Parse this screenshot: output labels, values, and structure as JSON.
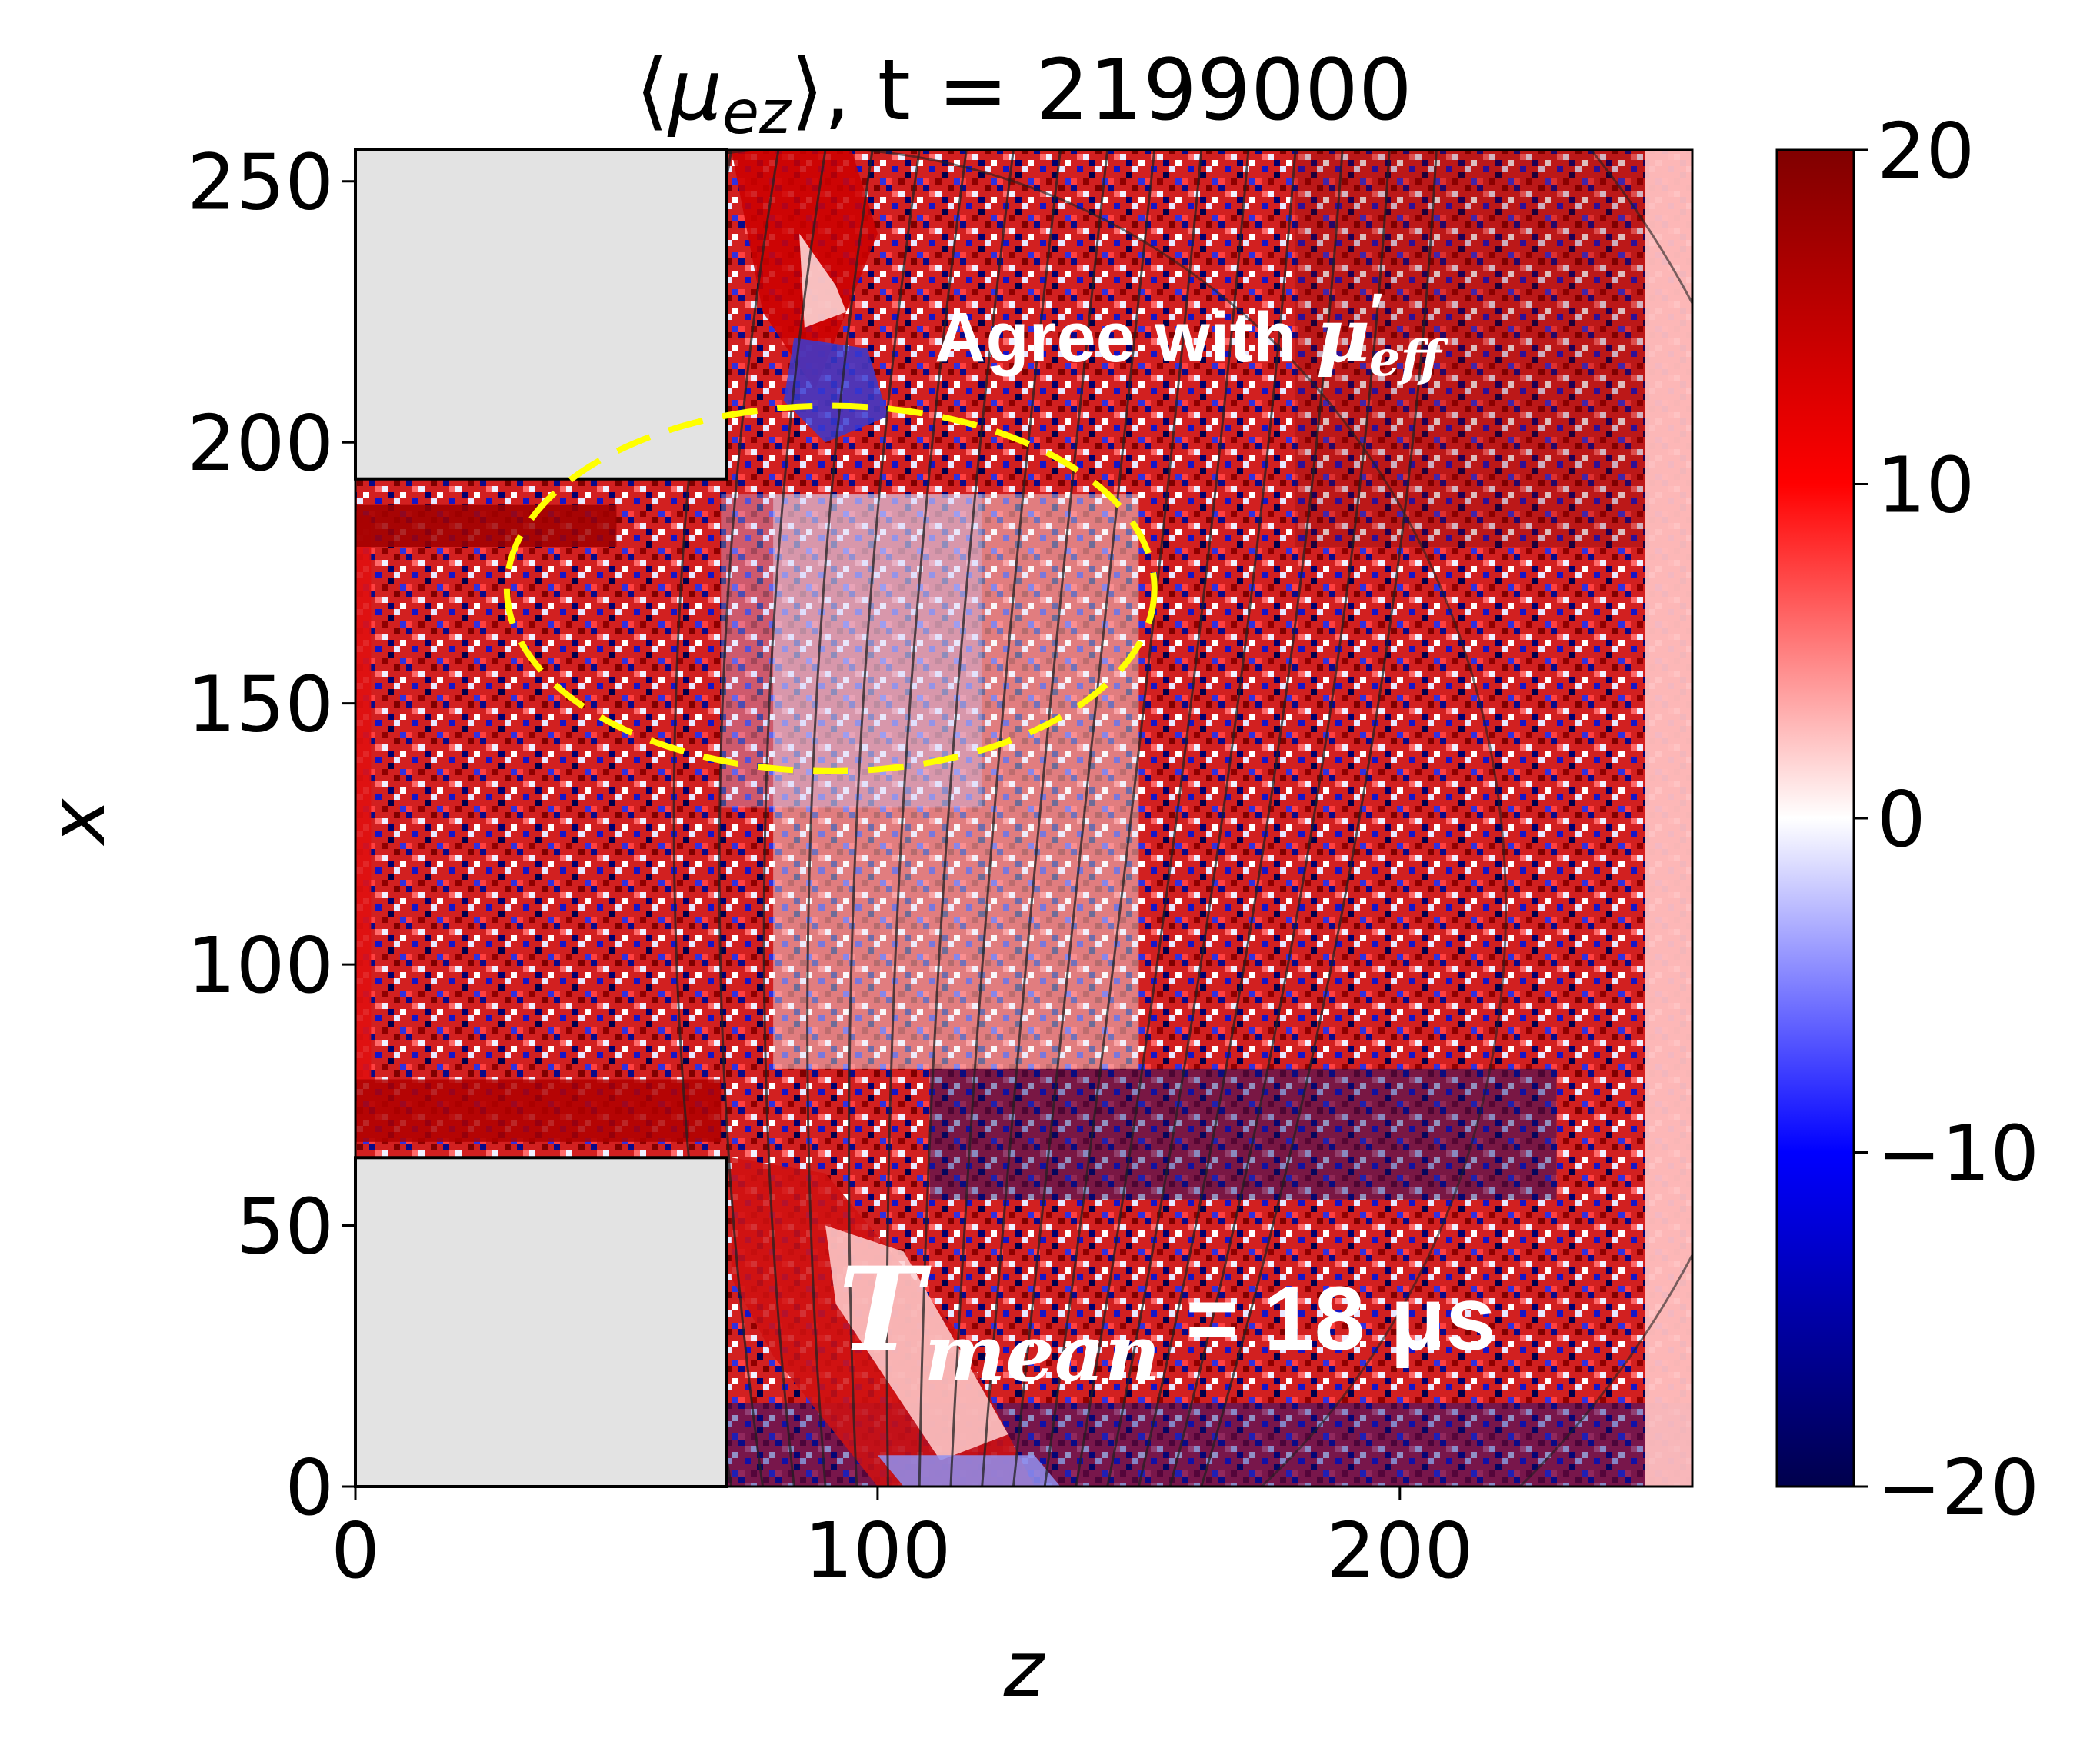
{
  "chart_data": {
    "type": "heatmap",
    "title_parts": {
      "open": "⟨",
      "mu": "μ",
      "sub": "ez",
      "close": "⟩",
      "rest": ", t = 2199000"
    },
    "xlabel": "z",
    "ylabel": "x",
    "xlim": [
      0,
      256
    ],
    "ylim": [
      0,
      256
    ],
    "xticks": [
      0,
      100,
      200
    ],
    "yticks": [
      0,
      50,
      100,
      150,
      200,
      250
    ],
    "colormap": "seismic",
    "colors": {
      "low": "#00004c",
      "mid_low": "#0000ff",
      "mid": "#ffffff",
      "mid_high": "#ff0000",
      "high": "#800000",
      "mask": "#e3e3e3",
      "ellipse": "#ffff00",
      "contour": "#222222"
    },
    "colorbar": {
      "min": -20,
      "max": 20,
      "ticks": [
        -20,
        -10,
        0,
        10,
        20
      ],
      "tick_labels": [
        "−20",
        "−10",
        "0",
        "10",
        "20"
      ]
    },
    "masked_regions": [
      {
        "name": "upper-electrode",
        "z": [
          0,
          71
        ],
        "x": [
          193,
          256
        ]
      },
      {
        "name": "lower-electrode",
        "z": [
          0,
          71
        ],
        "x": [
          0,
          63
        ]
      }
    ],
    "ellipse": {
      "center_z": 91,
      "center_x": 172,
      "radius_z": 62,
      "radius_x": 35,
      "style": "dashed"
    },
    "annotations": {
      "agree": {
        "text": "Agree with ",
        "mu": "μ",
        "prime": "′",
        "sub": "eff"
      },
      "tmean": {
        "T": "T",
        "sub": "mean",
        "rest": " = 18 μs"
      }
    }
  }
}
